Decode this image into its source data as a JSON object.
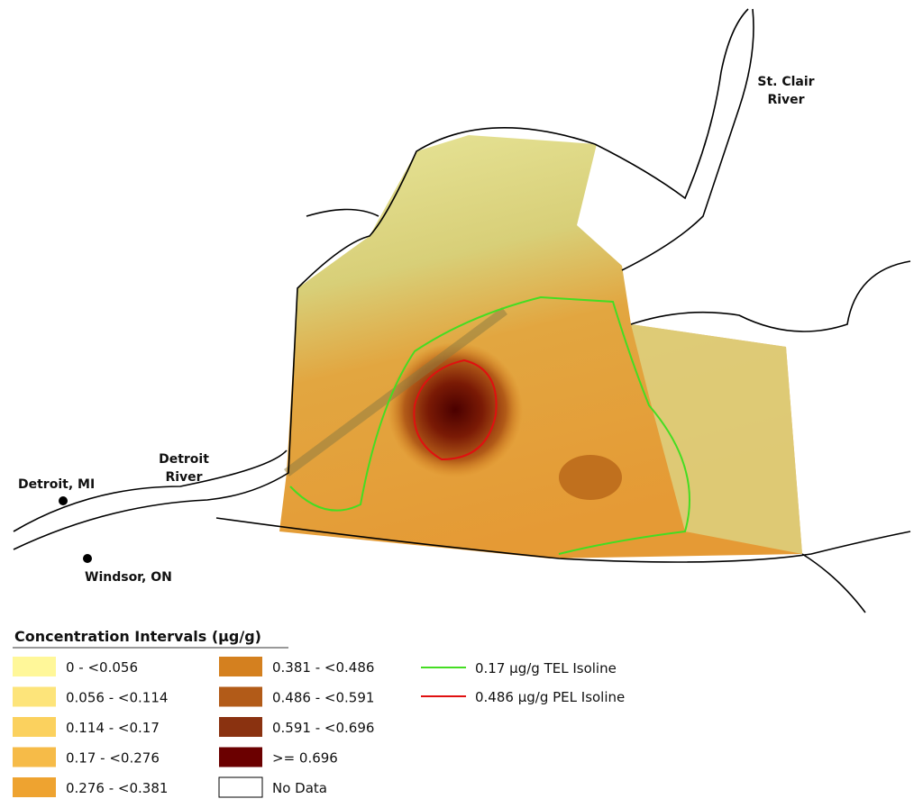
{
  "map": {
    "places": [
      {
        "lines": [
          "St. Clair",
          "River"
        ]
      },
      {
        "lines": [
          "Detroit",
          "River"
        ]
      },
      {
        "lines": [
          "Detroit, MI"
        ]
      },
      {
        "lines": [
          "Windsor, ON"
        ]
      }
    ],
    "legend": {
      "title": "Concentration Intervals (µg/g)",
      "items": [
        {
          "label": "0 - <0.056",
          "color": "#fff799"
        },
        {
          "label": "0.056 - <0.114",
          "color": "#fde47a"
        },
        {
          "label": "0.114 - <0.17",
          "color": "#fbd15e"
        },
        {
          "label": "0.17 - <0.276",
          "color": "#f6bb48"
        },
        {
          "label": "0.276 - <0.381",
          "color": "#eea330"
        },
        {
          "label": "0.381 - <0.486",
          "color": "#d4801f"
        },
        {
          "label": "0.486 - <0.591",
          "color": "#b25b18"
        },
        {
          "label": "0.591 - <0.696",
          "color": "#8a3210"
        },
        {
          "label": ">= 0.696",
          "color": "#6b0000"
        },
        {
          "label": "No Data",
          "color": "#ffffff"
        }
      ],
      "isolines": [
        {
          "label": "0.17 µg/g TEL Isoline",
          "color": "#44dd22"
        },
        {
          "label": "0.486 µg/g PEL Isoline",
          "color": "#e01010"
        }
      ]
    }
  }
}
